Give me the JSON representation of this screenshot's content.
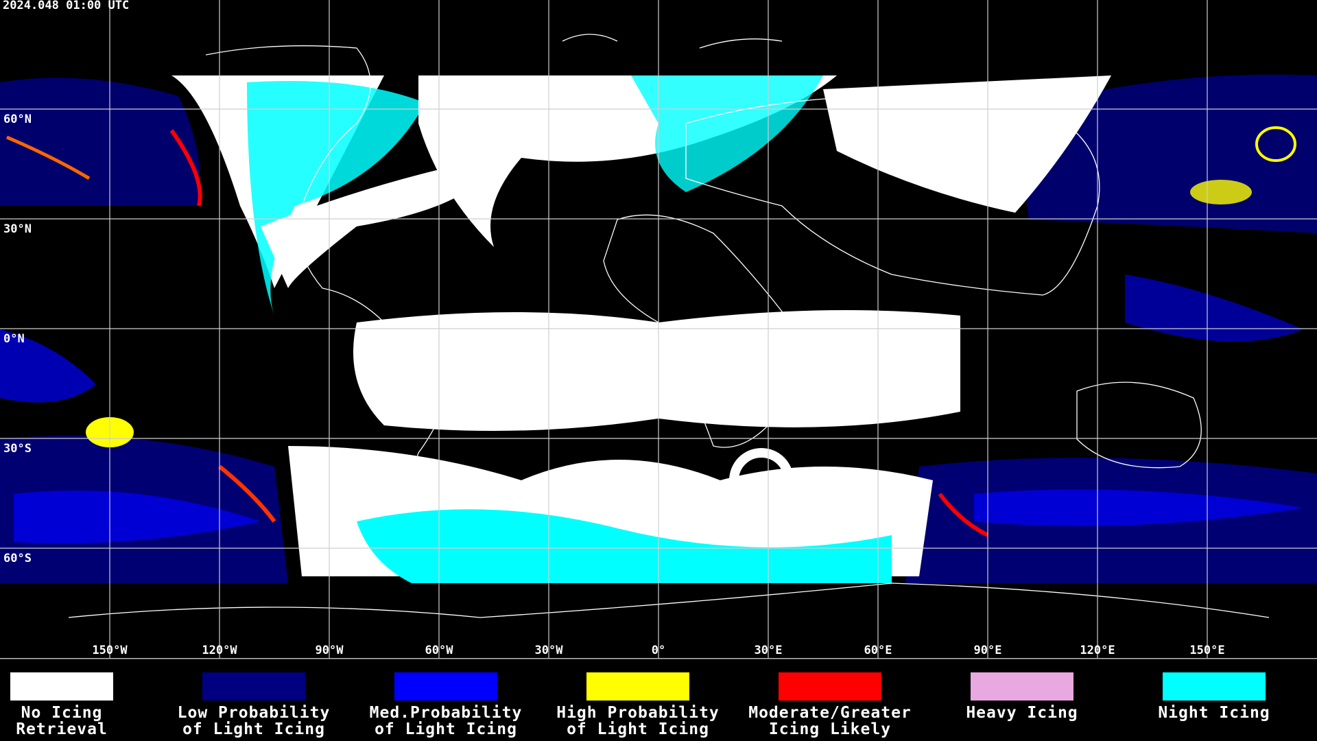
{
  "header": {
    "timestamp": "2024.048 01:00 UTC"
  },
  "map": {
    "latitude_labels": [
      "60°N",
      "30°N",
      "0°N",
      "30°S",
      "60°S"
    ],
    "longitude_labels": [
      "150°W",
      "120°W",
      "90°W",
      "60°W",
      "30°W",
      "0°",
      "30°E",
      "60°E",
      "90°E",
      "120°E",
      "150°E"
    ]
  },
  "legend": {
    "items": [
      {
        "label_lines": [
          "No Icing",
          "Retrieval"
        ],
        "color": "#ffffff"
      },
      {
        "label_lines": [
          "Low Probability",
          "of Light Icing"
        ],
        "color": "#000080"
      },
      {
        "label_lines": [
          "Med.Probability",
          "of Light Icing"
        ],
        "color": "#0000ff"
      },
      {
        "label_lines": [
          "High Probability",
          "of Light Icing"
        ],
        "color": "#ffff00"
      },
      {
        "label_lines": [
          "Moderate/Greater",
          "Icing Likely"
        ],
        "color": "#ff0000"
      },
      {
        "label_lines": [
          "Heavy Icing"
        ],
        "color": "#e8a8e0"
      },
      {
        "label_lines": [
          "Night Icing"
        ],
        "color": "#00ffff"
      }
    ]
  }
}
